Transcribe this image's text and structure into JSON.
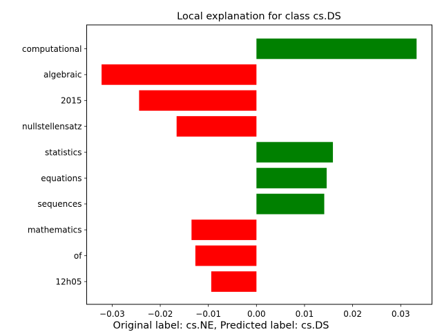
{
  "chart_data": {
    "type": "bar",
    "orientation": "horizontal",
    "title": "Local explanation for class cs.DS",
    "xlabel": "",
    "ylabel": "",
    "categories": [
      "computational",
      "algebraic",
      "2015",
      "nullstellensatz",
      "statistics",
      "equations",
      "sequences",
      "mathematics",
      "of",
      "12h05"
    ],
    "values": [
      0.0333,
      -0.0322,
      -0.0244,
      -0.0166,
      0.0159,
      0.0146,
      0.0141,
      -0.0135,
      -0.0127,
      -0.0094
    ],
    "xlim": [
      -0.0353,
      0.0365
    ],
    "xticks": [
      -0.03,
      -0.02,
      -0.01,
      0.0,
      0.01,
      0.02,
      0.03
    ],
    "xtick_labels": [
      "−0.03",
      "−0.02",
      "−0.01",
      "0.00",
      "0.01",
      "0.02",
      "0.03"
    ],
    "grid": false,
    "colors": {
      "positive": "#008000",
      "negative": "#ff0000"
    }
  },
  "footer": {
    "caption": "Original label: cs.NE, Predicted label: cs.DS"
  }
}
